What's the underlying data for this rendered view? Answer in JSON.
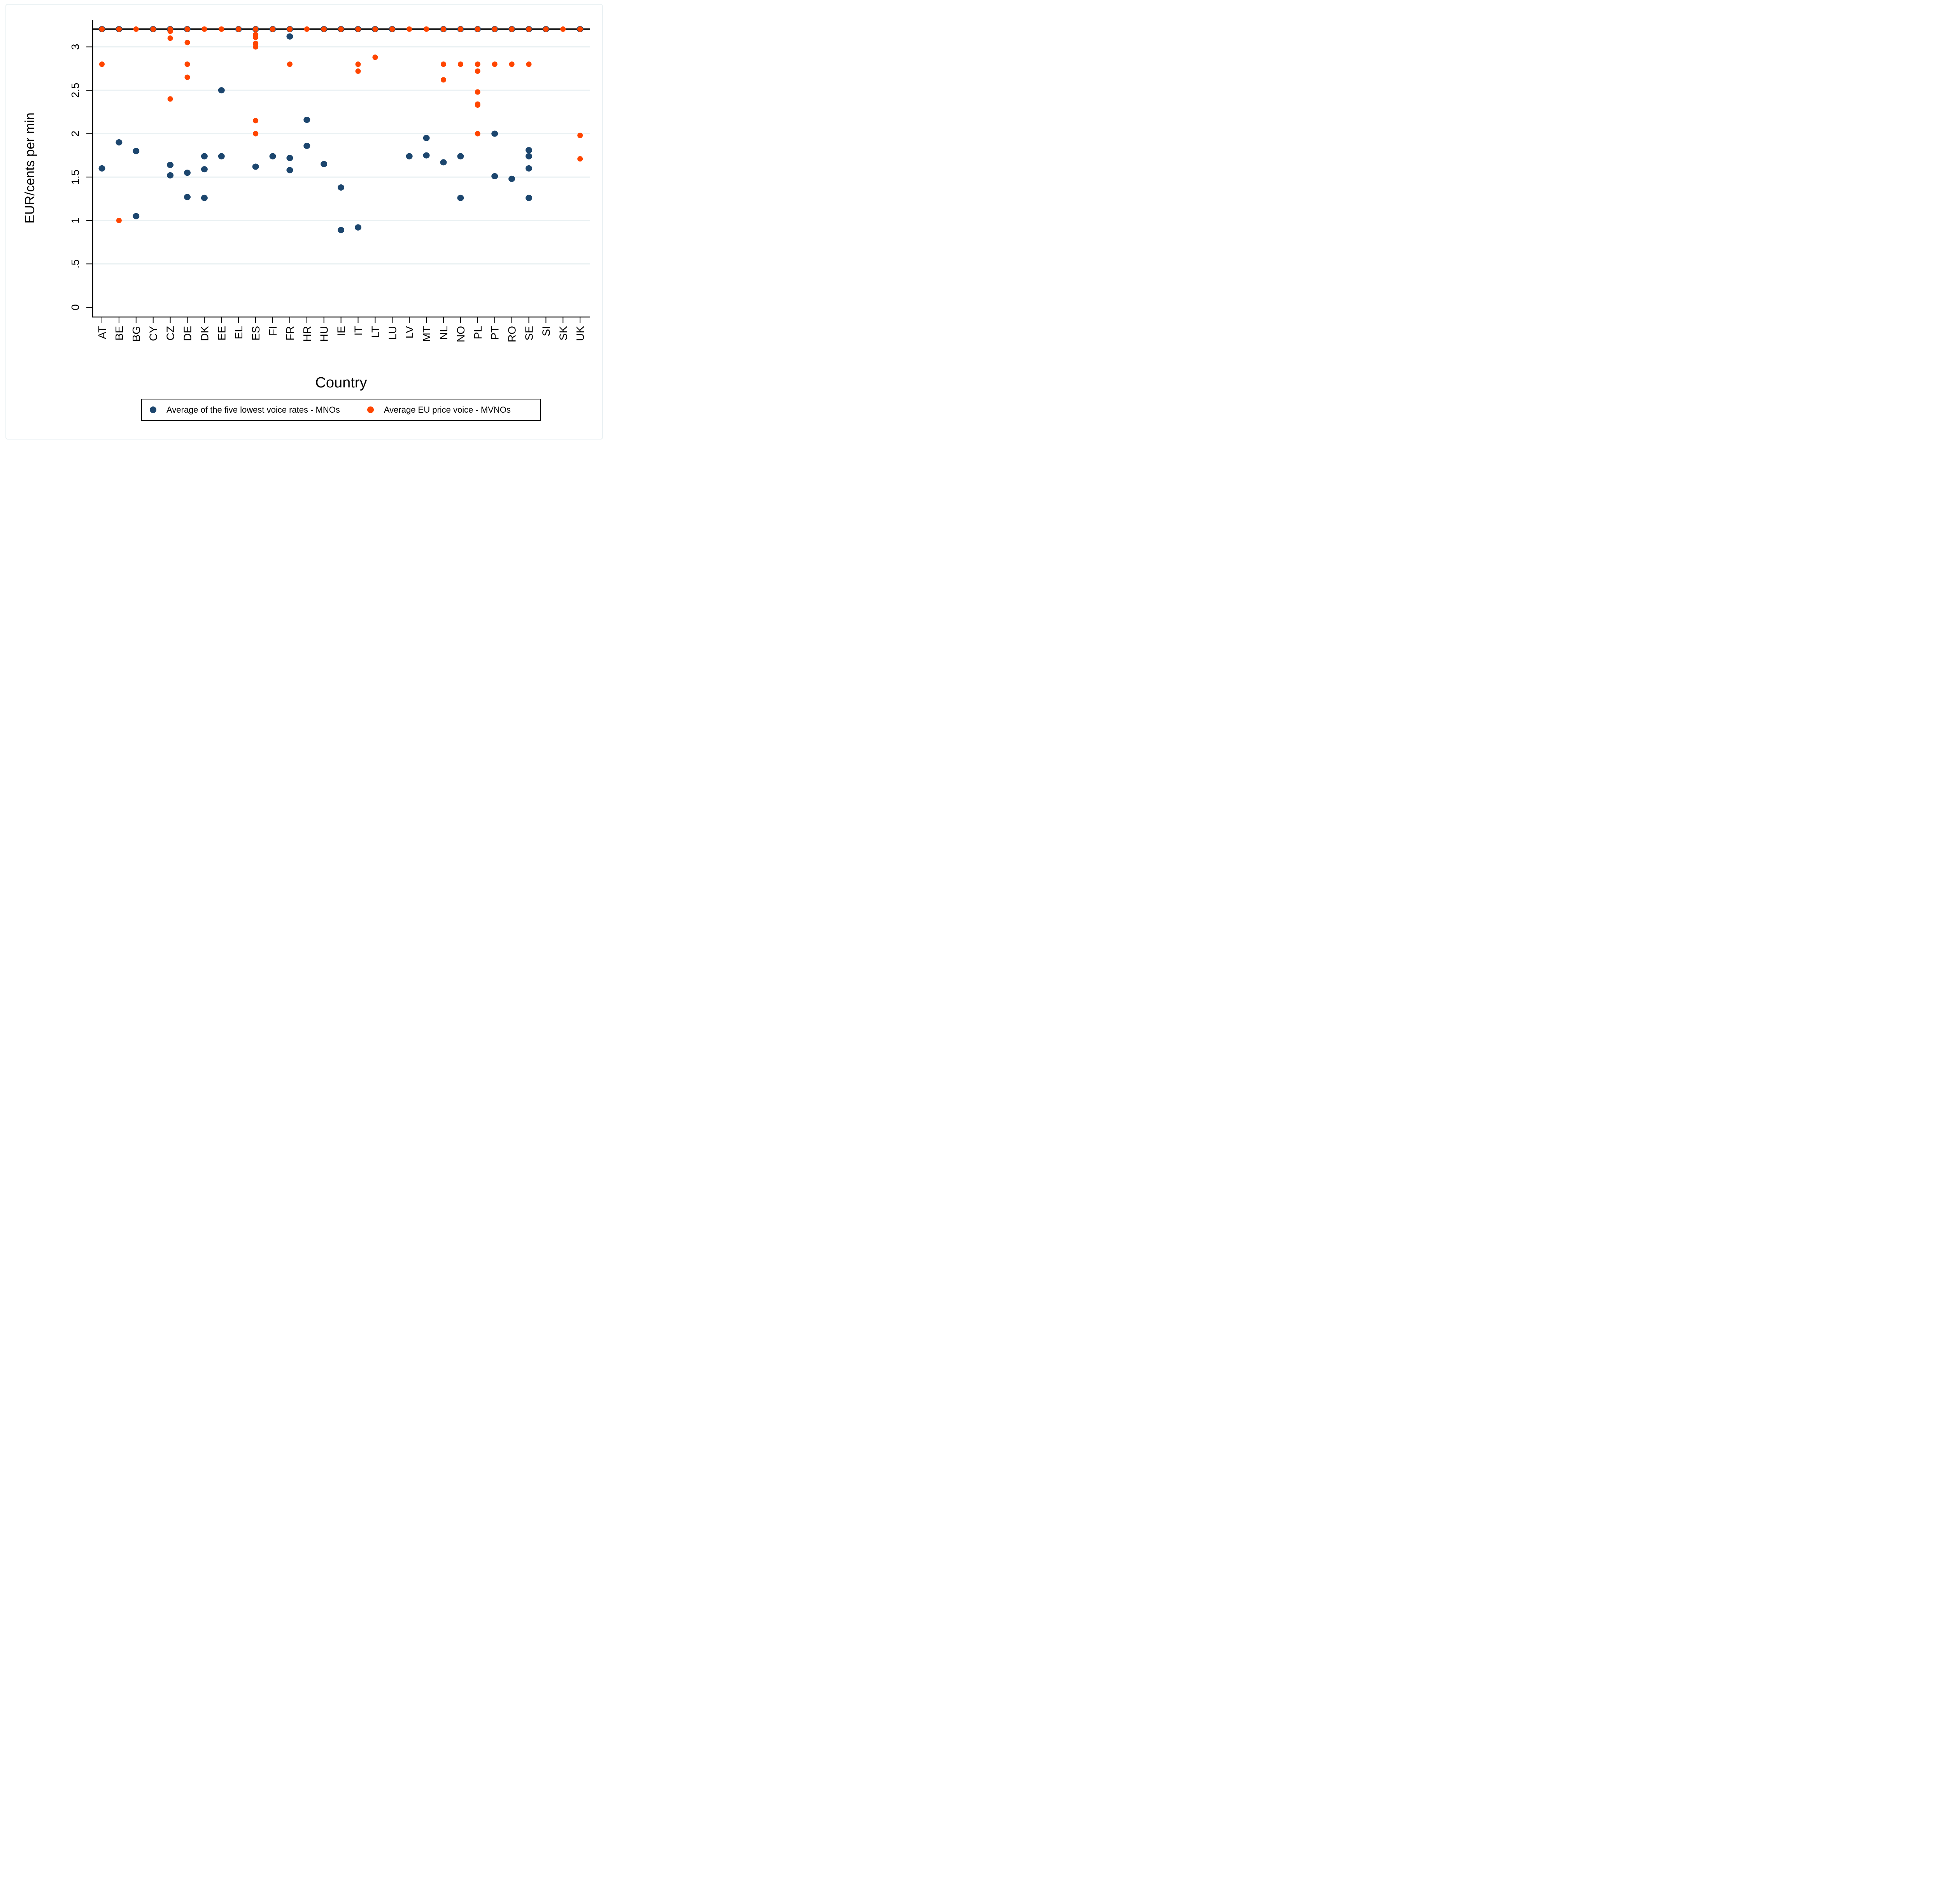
{
  "chart_data": {
    "type": "scatter",
    "title": "",
    "xlabel": "Country",
    "ylabel": "EUR/cents per min",
    "ylim": [
      0,
      3.25
    ],
    "yticks": [
      0,
      0.5,
      1,
      1.5,
      2,
      2.5,
      3
    ],
    "ytick_labels": [
      "0",
      ".5",
      "1",
      "1.5",
      "2",
      "2.5",
      "3"
    ],
    "grid": "horizontal",
    "categories": [
      "AT",
      "BE",
      "BG",
      "CY",
      "CZ",
      "DE",
      "DK",
      "EE",
      "EL",
      "ES",
      "FI",
      "FR",
      "HR",
      "HU",
      "IE",
      "IT",
      "LT",
      "LU",
      "LV",
      "MT",
      "NL",
      "NO",
      "PL",
      "PT",
      "RO",
      "SE",
      "SI",
      "SK",
      "UK"
    ],
    "reference_line": {
      "y": 3.2,
      "color": "#000000"
    },
    "legend_position": "bottom",
    "series": [
      {
        "name": "Average of the five lowest voice rates - MNOs",
        "color": "#1c466e",
        "points": {
          "AT": [
            3.2,
            1.6
          ],
          "BE": [
            3.2,
            1.9
          ],
          "BG": [
            1.8,
            1.05
          ],
          "CY": [
            3.2
          ],
          "CZ": [
            3.2,
            1.64,
            1.52
          ],
          "DE": [
            3.2,
            1.55,
            1.27
          ],
          "DK": [
            1.74,
            1.59,
            1.26
          ],
          "EE": [
            2.5,
            1.74
          ],
          "EL": [
            3.2
          ],
          "ES": [
            3.2,
            1.62
          ],
          "FI": [
            3.2,
            1.74
          ],
          "FR": [
            3.2,
            3.12,
            1.72,
            1.58
          ],
          "HR": [
            2.16,
            1.86
          ],
          "HU": [
            3.2,
            1.65
          ],
          "IE": [
            3.2,
            1.38,
            0.89
          ],
          "IT": [
            3.2,
            0.92
          ],
          "LT": [
            3.2
          ],
          "LU": [
            3.2
          ],
          "LV": [
            1.74
          ],
          "MT": [
            1.95,
            1.75
          ],
          "NL": [
            3.2,
            1.67
          ],
          "NO": [
            3.2,
            1.74,
            1.26
          ],
          "PL": [
            3.2
          ],
          "PT": [
            3.2,
            2.0,
            1.51
          ],
          "RO": [
            3.2,
            1.48
          ],
          "SE": [
            3.2,
            1.81,
            1.74,
            1.6,
            1.26
          ],
          "SI": [
            3.2
          ],
          "SK": [],
          "UK": [
            3.2
          ]
        }
      },
      {
        "name": "Average EU price voice - MVNOs",
        "color": "#ff4500",
        "points": {
          "AT": [
            3.2,
            2.8
          ],
          "BE": [
            3.2,
            1.0
          ],
          "BG": [
            3.2
          ],
          "CY": [
            3.2
          ],
          "CZ": [
            3.2,
            3.18,
            3.1,
            2.4
          ],
          "DE": [
            3.2,
            3.05,
            2.8,
            2.65
          ],
          "DK": [
            3.2
          ],
          "EE": [
            3.2
          ],
          "EL": [
            3.2
          ],
          "ES": [
            3.2,
            3.14,
            3.11,
            3.04,
            3.0,
            2.15,
            2.0
          ],
          "FI": [
            3.2
          ],
          "FR": [
            3.2,
            2.8
          ],
          "HR": [
            3.2
          ],
          "HU": [
            3.2
          ],
          "IE": [
            3.2
          ],
          "IT": [
            3.2,
            2.8,
            2.72
          ],
          "LT": [
            3.2,
            2.88
          ],
          "LU": [
            3.2
          ],
          "LV": [
            3.2
          ],
          "MT": [
            3.2
          ],
          "NL": [
            3.2,
            2.8,
            2.62
          ],
          "NO": [
            3.2,
            2.8
          ],
          "PL": [
            3.2,
            2.8,
            2.72,
            2.48,
            2.34,
            2.33,
            2.0
          ],
          "PT": [
            3.2,
            2.8
          ],
          "RO": [
            3.2,
            2.8
          ],
          "SE": [
            3.2,
            2.8
          ],
          "SI": [
            3.2
          ],
          "SK": [
            3.2
          ],
          "UK": [
            3.2,
            1.98,
            1.71
          ]
        }
      }
    ]
  },
  "legend": {
    "items": [
      {
        "label": "Average of the five lowest voice rates - MNOs",
        "color": "#1c466e"
      },
      {
        "label": "Average EU price voice - MVNOs",
        "color": "#ff4500"
      }
    ]
  },
  "colors": {
    "gridline": "#eaf1f3",
    "axis": "#000000"
  }
}
